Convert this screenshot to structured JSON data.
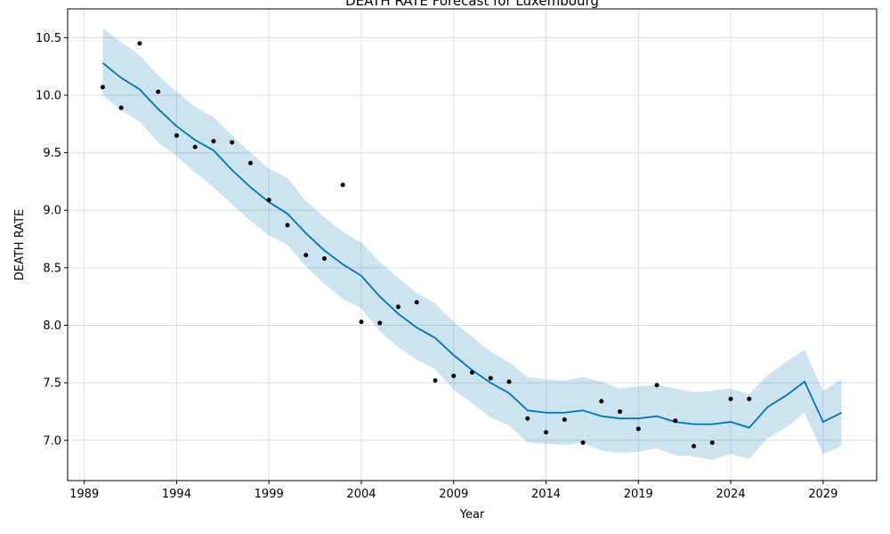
{
  "chart_data": {
    "type": "line",
    "title": "DEATH RATE Forecast for Luxembourg",
    "xlabel": "Year",
    "ylabel": "DEATH RATE",
    "xlim": [
      1988.1,
      2031.9
    ],
    "ylim": [
      6.65,
      10.75
    ],
    "x_ticks": [
      1989,
      1994,
      1999,
      2004,
      2009,
      2014,
      2019,
      2024,
      2029
    ],
    "y_ticks": [
      7.0,
      7.5,
      8.0,
      8.5,
      9.0,
      9.5,
      10.0,
      10.5
    ],
    "y_tick_labels": [
      "7.0",
      "7.5",
      "8.0",
      "8.5",
      "9.0",
      "9.5",
      "10.0",
      "10.5"
    ],
    "grid": true,
    "colors": {
      "forecast": "#0072b2",
      "interval": "#0072b2",
      "observed": "#000000"
    },
    "observed": {
      "x": [
        1990,
        1991,
        1992,
        1993,
        1994,
        1995,
        1996,
        1997,
        1998,
        1999,
        2000,
        2001,
        2002,
        2003,
        2004,
        2005,
        2006,
        2007,
        2008,
        2009,
        2010,
        2011,
        2012,
        2013,
        2014,
        2015,
        2016,
        2017,
        2018,
        2019,
        2020,
        2021,
        2022,
        2023,
        2024,
        2025
      ],
      "y": [
        10.07,
        9.89,
        10.45,
        10.03,
        9.65,
        9.55,
        9.6,
        9.59,
        9.41,
        9.09,
        8.87,
        8.61,
        8.58,
        9.22,
        8.03,
        8.02,
        8.16,
        8.2,
        7.52,
        7.56,
        7.59,
        7.54,
        7.51,
        7.19,
        7.07,
        7.18,
        6.98,
        7.34,
        7.25,
        7.1,
        7.48,
        7.17,
        6.95,
        6.98,
        7.36,
        7.36
      ]
    },
    "forecast": {
      "x": [
        1990,
        1991,
        1992,
        1993,
        1994,
        1995,
        1996,
        1997,
        1998,
        1999,
        2000,
        2001,
        2002,
        2003,
        2004,
        2005,
        2006,
        2007,
        2008,
        2009,
        2010,
        2011,
        2012,
        2013,
        2014,
        2015,
        2016,
        2017,
        2018,
        2019,
        2020,
        2021,
        2022,
        2023,
        2024,
        2025,
        2026,
        2027,
        2028,
        2029,
        2030
      ],
      "yhat": [
        10.28,
        10.15,
        10.05,
        9.88,
        9.73,
        9.61,
        9.52,
        9.35,
        9.2,
        9.07,
        8.97,
        8.8,
        8.65,
        8.53,
        8.43,
        8.25,
        8.1,
        7.98,
        7.89,
        7.74,
        7.61,
        7.5,
        7.41,
        7.26,
        7.24,
        7.24,
        7.26,
        7.21,
        7.19,
        7.19,
        7.21,
        7.16,
        7.14,
        7.14,
        7.16,
        7.11,
        7.29,
        7.39,
        7.51,
        7.16,
        7.24
      ],
      "lower": [
        10.0,
        9.87,
        9.77,
        9.59,
        9.47,
        9.33,
        9.2,
        9.05,
        8.91,
        8.78,
        8.7,
        8.51,
        8.36,
        8.23,
        8.15,
        7.95,
        7.81,
        7.7,
        7.62,
        7.44,
        7.32,
        7.2,
        7.13,
        6.98,
        6.97,
        6.96,
        6.98,
        6.91,
        6.89,
        6.9,
        6.93,
        6.87,
        6.86,
        6.83,
        6.88,
        6.84,
        7.02,
        7.11,
        7.24,
        6.88,
        6.95
      ],
      "upper": [
        10.58,
        10.46,
        10.35,
        10.17,
        10.03,
        9.9,
        9.81,
        9.65,
        9.5,
        9.36,
        9.28,
        9.08,
        8.94,
        8.81,
        8.72,
        8.55,
        8.41,
        8.28,
        8.19,
        8.03,
        7.9,
        7.77,
        7.68,
        7.55,
        7.53,
        7.52,
        7.55,
        7.51,
        7.45,
        7.47,
        7.48,
        7.45,
        7.42,
        7.43,
        7.45,
        7.4,
        7.57,
        7.68,
        7.79,
        7.43,
        7.53
      ]
    }
  }
}
